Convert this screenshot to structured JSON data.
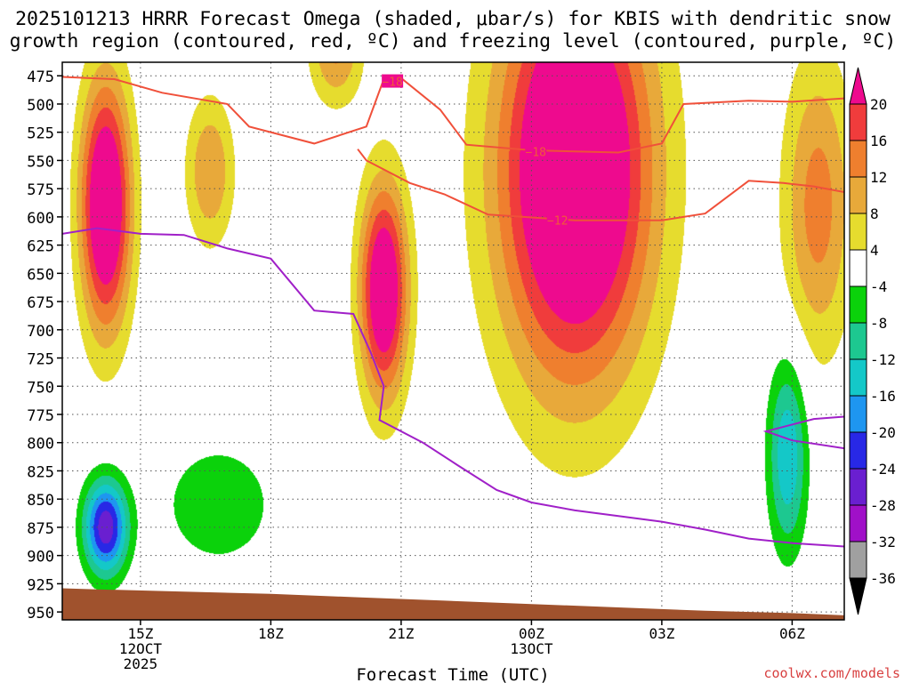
{
  "page": {
    "title_line1": "2025101213 HRRR Forecast Omega (shaded, μbar/s) for KBIS with dendritic snow",
    "title_line2": "growth region (contoured, red, ºC) and freezing level (contoured, purple, ºC)",
    "credit": "coolwx.com/models"
  },
  "chart_data": {
    "type": "heatmap",
    "title": "2025101213 HRRR Forecast Omega (shaded, μbar/s) for KBIS with dendritic snow growth region (contoured, red, ºC) and freezing level (contoured, purple, ºC)",
    "xlabel": "Forecast Time (UTC)",
    "ylabel": "",
    "xlim": [
      13.2,
      31.2
    ],
    "ylim": [
      463,
      957
    ],
    "y_axis": "pressure (mb), inverted",
    "y_ticks": [
      475,
      500,
      525,
      550,
      575,
      600,
      625,
      650,
      675,
      700,
      725,
      750,
      775,
      800,
      825,
      850,
      875,
      900,
      925,
      950
    ],
    "x_ticks": [
      {
        "value": 15,
        "lines": [
          "15Z",
          "12OCT",
          "2025"
        ]
      },
      {
        "value": 18,
        "lines": [
          "18Z"
        ]
      },
      {
        "value": 21,
        "lines": [
          "21Z"
        ]
      },
      {
        "value": 24,
        "lines": [
          "00Z",
          "13OCT"
        ]
      },
      {
        "value": 27,
        "lines": [
          "03Z"
        ]
      },
      {
        "value": 30,
        "lines": [
          "06Z"
        ]
      }
    ],
    "colorbar": {
      "label_values": [
        20,
        16,
        12,
        8,
        4,
        -4,
        -8,
        -12,
        -16,
        -20,
        -24,
        -28,
        -32,
        -36
      ],
      "bins": [
        {
          "from": 20,
          "to": 99,
          "color": "#ee0a8e"
        },
        {
          "from": 16,
          "to": 20,
          "color": "#f03c3c"
        },
        {
          "from": 12,
          "to": 16,
          "color": "#ef7f2e"
        },
        {
          "from": 8,
          "to": 12,
          "color": "#e8a93a"
        },
        {
          "from": 4,
          "to": 8,
          "color": "#e6dc2e"
        },
        {
          "from": -4,
          "to": 4,
          "color": "#ffffff"
        },
        {
          "from": -8,
          "to": -4,
          "color": "#0bd20b"
        },
        {
          "from": -12,
          "to": -8,
          "color": "#1dc890"
        },
        {
          "from": -16,
          "to": -12,
          "color": "#14c8c8"
        },
        {
          "from": -20,
          "to": -16,
          "color": "#1e96f0"
        },
        {
          "from": -24,
          "to": -20,
          "color": "#2828e6"
        },
        {
          "from": -28,
          "to": -24,
          "color": "#6a1fd0"
        },
        {
          "from": -32,
          "to": -28,
          "color": "#a010c8"
        },
        {
          "from": -36,
          "to": -32,
          "color": "#a0a0a0"
        },
        {
          "from": -99,
          "to": -36,
          "color": "#000000"
        }
      ]
    },
    "omega_field": {
      "units": "μbar/s",
      "centers": [
        {
          "name": "ascent-15z",
          "t": 14.2,
          "p": 590,
          "st": 0.58,
          "sp": 110,
          "amp": 30
        },
        {
          "name": "ascent-17z",
          "t": 16.6,
          "p": 560,
          "st": 0.55,
          "sp": 65,
          "amp": 12
        },
        {
          "name": "ascent-20z",
          "t": 20.6,
          "p": 665,
          "st": 0.55,
          "sp": 95,
          "amp": 28
        },
        {
          "name": "ascent-upper-19z",
          "t": 19.5,
          "p": 450,
          "st": 0.6,
          "sp": 50,
          "amp": 13
        },
        {
          "name": "ascent-main",
          "t": 25.0,
          "p": 560,
          "st": 1.75,
          "sp": 185,
          "amp": 34
        },
        {
          "name": "ascent-late",
          "t": 30.6,
          "p": 590,
          "st": 0.8,
          "sp": 130,
          "amp": 14
        },
        {
          "name": "descent-15z",
          "t": 14.2,
          "p": 875,
          "st": 0.5,
          "sp": 42,
          "amp": -27
        },
        {
          "name": "descent-17z",
          "t": 16.8,
          "p": 855,
          "st": 1.3,
          "sp": 55,
          "amp": -7.5
        },
        {
          "name": "descent-05z",
          "t": 29.9,
          "p": 810,
          "st": 0.45,
          "sp": 85,
          "amp": -16
        }
      ]
    },
    "series": [
      {
        "name": "dendritic snow growth region -18 ºC",
        "color": "#f0503a",
        "label": "−18",
        "label_points": [
          [
            20.8,
            480
          ],
          [
            24.1,
            542
          ]
        ],
        "points": [
          [
            13.2,
            476
          ],
          [
            14.4,
            478
          ],
          [
            15.5,
            490
          ],
          [
            17.0,
            500
          ],
          [
            17.5,
            520
          ],
          [
            19.0,
            535
          ],
          [
            20.2,
            520
          ],
          [
            20.6,
            478
          ],
          [
            21.0,
            477
          ],
          [
            21.9,
            505
          ],
          [
            22.5,
            536
          ],
          [
            24.0,
            541
          ],
          [
            26.0,
            543
          ],
          [
            27.0,
            535
          ],
          [
            27.5,
            500
          ],
          [
            29.0,
            497
          ],
          [
            30.0,
            498
          ],
          [
            31.2,
            495
          ]
        ]
      },
      {
        "name": "dendritic snow growth region -12 ºC",
        "color": "#f0503a",
        "label": "−12",
        "label_points": [
          [
            24.6,
            603
          ]
        ],
        "points": [
          [
            20.0,
            540
          ],
          [
            20.2,
            550
          ],
          [
            21.2,
            570
          ],
          [
            22.0,
            580
          ],
          [
            23.0,
            598
          ],
          [
            25.0,
            603
          ],
          [
            27.0,
            603
          ],
          [
            28.0,
            597
          ],
          [
            29.0,
            568
          ],
          [
            29.8,
            570
          ],
          [
            30.5,
            573
          ],
          [
            31.2,
            578
          ]
        ]
      },
      {
        "name": "freezing level 0 ºC",
        "color": "#a020c8",
        "label": "",
        "label_points": [],
        "points": [
          [
            13.2,
            615
          ],
          [
            14.0,
            610
          ],
          [
            15.0,
            615
          ],
          [
            16.0,
            616
          ],
          [
            17.0,
            628
          ],
          [
            18.0,
            637
          ],
          [
            19.0,
            683
          ],
          [
            19.9,
            686
          ],
          [
            20.3,
            720
          ],
          [
            20.6,
            750
          ],
          [
            20.5,
            780
          ],
          [
            21.5,
            800
          ],
          [
            22.3,
            820
          ],
          [
            23.2,
            842
          ],
          [
            24.0,
            853
          ],
          [
            25.0,
            860
          ],
          [
            26.0,
            865
          ],
          [
            27.0,
            870
          ],
          [
            28.0,
            877
          ],
          [
            29.0,
            885
          ],
          [
            30.0,
            889
          ],
          [
            31.2,
            892
          ]
        ]
      },
      {
        "name": "freezing level 0 ºC (upper branch)",
        "color": "#a020c8",
        "label": "",
        "label_points": [],
        "points": [
          [
            31.2,
            777
          ],
          [
            30.5,
            779
          ],
          [
            29.4,
            790
          ],
          [
            30.0,
            798
          ],
          [
            31.2,
            805
          ]
        ]
      }
    ],
    "terrain": {
      "color": "#a0522d",
      "points": [
        [
          13.2,
          929
        ],
        [
          14.0,
          930
        ],
        [
          16.0,
          932
        ],
        [
          18.0,
          934
        ],
        [
          20.0,
          937
        ],
        [
          22.0,
          940
        ],
        [
          24.0,
          943
        ],
        [
          26.0,
          946
        ],
        [
          28.0,
          949
        ],
        [
          30.0,
          951
        ],
        [
          31.2,
          953
        ]
      ]
    }
  }
}
